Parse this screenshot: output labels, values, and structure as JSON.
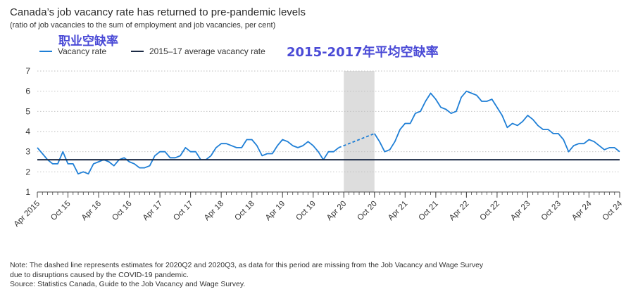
{
  "title": "Canada’s job vacancy rate has returned to pre-pandemic levels",
  "subtitle": "(ratio of job vacancies to the sum of employment and job vacancies, per cent)",
  "annotations": {
    "vacancy_cn": "职业空缺率",
    "average_cn": "2015-2017年平均空缺率"
  },
  "legend": {
    "vacancy": "Vacancy rate",
    "average": "2015–17 average vacancy rate"
  },
  "notes": {
    "line1": "Note: The dashed line represents estimates for 2020Q2 and 2020Q3, as data for this period are missing from the Job Vacancy and Wage Survey",
    "line2": "due to disruptions caused by the COVID-19 pandemic.",
    "line3": "Source: Statistics Canada, Guide to the Job Vacancy and Wage Survey."
  },
  "colors": {
    "vacancy": "#1f7fd6",
    "average": "#1b2a44",
    "shade": "#dddddd",
    "axis": "#444444"
  },
  "chart_data": {
    "type": "line",
    "title": "Canada’s job vacancy rate has returned to pre-pandemic levels",
    "subtitle": "(ratio of job vacancies to the sum of employment and job vacancies, per cent)",
    "ylim": [
      1,
      7
    ],
    "yticks": [
      1,
      2,
      3,
      4,
      5,
      6,
      7
    ],
    "xlabel": "",
    "ylabel": "",
    "x_start": "Apr 2015",
    "x_end": "Oct 24",
    "xtick_labels": [
      "Apr 2015",
      "Oct 15",
      "Apr 16",
      "Oct 16",
      "Apr 17",
      "Oct 17",
      "Apr 18",
      "Oct 18",
      "Apr 19",
      "Oct 19",
      "Apr 20",
      "Oct 20",
      "Apr 21",
      "Oct 21",
      "Apr 22",
      "Oct 22",
      "Apr 23",
      "Oct 23",
      "Apr 24",
      "Oct 24"
    ],
    "shaded_period": [
      "Apr 20",
      "Oct 20"
    ],
    "series": [
      {
        "name": "Vacancy rate",
        "style": "solid",
        "x": [
          "Apr 2015",
          "May 15",
          "Jun 15",
          "Jul 15",
          "Aug 15",
          "Sep 15",
          "Oct 15",
          "Nov 15",
          "Dec 15",
          "Jan 16",
          "Feb 16",
          "Mar 16",
          "Apr 16",
          "May 16",
          "Jun 16",
          "Jul 16",
          "Aug 16",
          "Sep 16",
          "Oct 16",
          "Nov 16",
          "Dec 16",
          "Jan 17",
          "Feb 17",
          "Mar 17",
          "Apr 17",
          "May 17",
          "Jun 17",
          "Jul 17",
          "Aug 17",
          "Sep 17",
          "Oct 17",
          "Nov 17",
          "Dec 17",
          "Jan 18",
          "Feb 18",
          "Mar 18",
          "Apr 18",
          "May 18",
          "Jun 18",
          "Jul 18",
          "Aug 18",
          "Sep 18",
          "Oct 18",
          "Nov 18",
          "Dec 18",
          "Jan 19",
          "Feb 19",
          "Mar 19",
          "Apr 19",
          "May 19",
          "Jun 19",
          "Jul 19",
          "Aug 19",
          "Sep 19",
          "Oct 19",
          "Nov 19",
          "Dec 19",
          "Jan 20",
          "Feb 20",
          "Mar 20"
        ],
        "values": [
          3.2,
          2.9,
          2.6,
          2.4,
          2.4,
          3.0,
          2.4,
          2.4,
          1.9,
          2.0,
          1.9,
          2.4,
          2.5,
          2.6,
          2.5,
          2.3,
          2.6,
          2.7,
          2.5,
          2.4,
          2.2,
          2.2,
          2.3,
          2.8,
          3.0,
          3.0,
          2.7,
          2.7,
          2.8,
          3.2,
          3.0,
          3.0,
          2.6,
          2.6,
          2.8,
          3.2,
          3.4,
          3.4,
          3.3,
          3.2,
          3.2,
          3.6,
          3.6,
          3.3,
          2.8,
          2.9,
          2.9,
          3.3,
          3.6,
          3.5,
          3.3,
          3.2,
          3.3,
          3.5,
          3.3,
          3.0,
          2.6,
          3.0,
          3.0,
          3.2
        ]
      },
      {
        "name": "Vacancy rate (estimate)",
        "style": "dashed",
        "x": [
          "Mar 20",
          "Apr 20",
          "Jul 20",
          "Oct 20"
        ],
        "values": [
          3.2,
          3.3,
          3.6,
          3.9
        ]
      },
      {
        "name": "Vacancy rate",
        "style": "solid",
        "x": [
          "Oct 20",
          "Nov 20",
          "Dec 20",
          "Jan 21",
          "Feb 21",
          "Mar 21",
          "Apr 21",
          "May 21",
          "Jun 21",
          "Jul 21",
          "Aug 21",
          "Sep 21",
          "Oct 21",
          "Nov 21",
          "Dec 21",
          "Jan 22",
          "Feb 22",
          "Mar 22",
          "Apr 22",
          "May 22",
          "Jun 22",
          "Jul 22",
          "Aug 22",
          "Sep 22",
          "Oct 22",
          "Nov 22",
          "Dec 22",
          "Jan 23",
          "Feb 23",
          "Mar 23",
          "Apr 23",
          "May 23",
          "Jun 23",
          "Jul 23",
          "Aug 23",
          "Sep 23",
          "Oct 23",
          "Nov 23",
          "Dec 23",
          "Jan 24",
          "Feb 24",
          "Mar 24",
          "Apr 24",
          "May 24",
          "Jun 24",
          "Jul 24",
          "Aug 24",
          "Sep 24",
          "Oct 24"
        ],
        "values": [
          3.9,
          3.5,
          3.0,
          3.1,
          3.5,
          4.1,
          4.4,
          4.4,
          4.9,
          5.0,
          5.5,
          5.9,
          5.6,
          5.2,
          5.1,
          4.9,
          5.0,
          5.7,
          6.0,
          5.9,
          5.8,
          5.5,
          5.5,
          5.6,
          5.2,
          4.8,
          4.2,
          4.4,
          4.3,
          4.5,
          4.8,
          4.6,
          4.3,
          4.1,
          4.1,
          3.9,
          3.9,
          3.6,
          3.0,
          3.3,
          3.4,
          3.4,
          3.6,
          3.5,
          3.3,
          3.1,
          3.2,
          3.2,
          3.0
        ]
      },
      {
        "name": "2015–17 average vacancy rate",
        "style": "solid",
        "x": [
          "Apr 2015",
          "Oct 24"
        ],
        "values": [
          2.6,
          2.6
        ]
      }
    ]
  }
}
